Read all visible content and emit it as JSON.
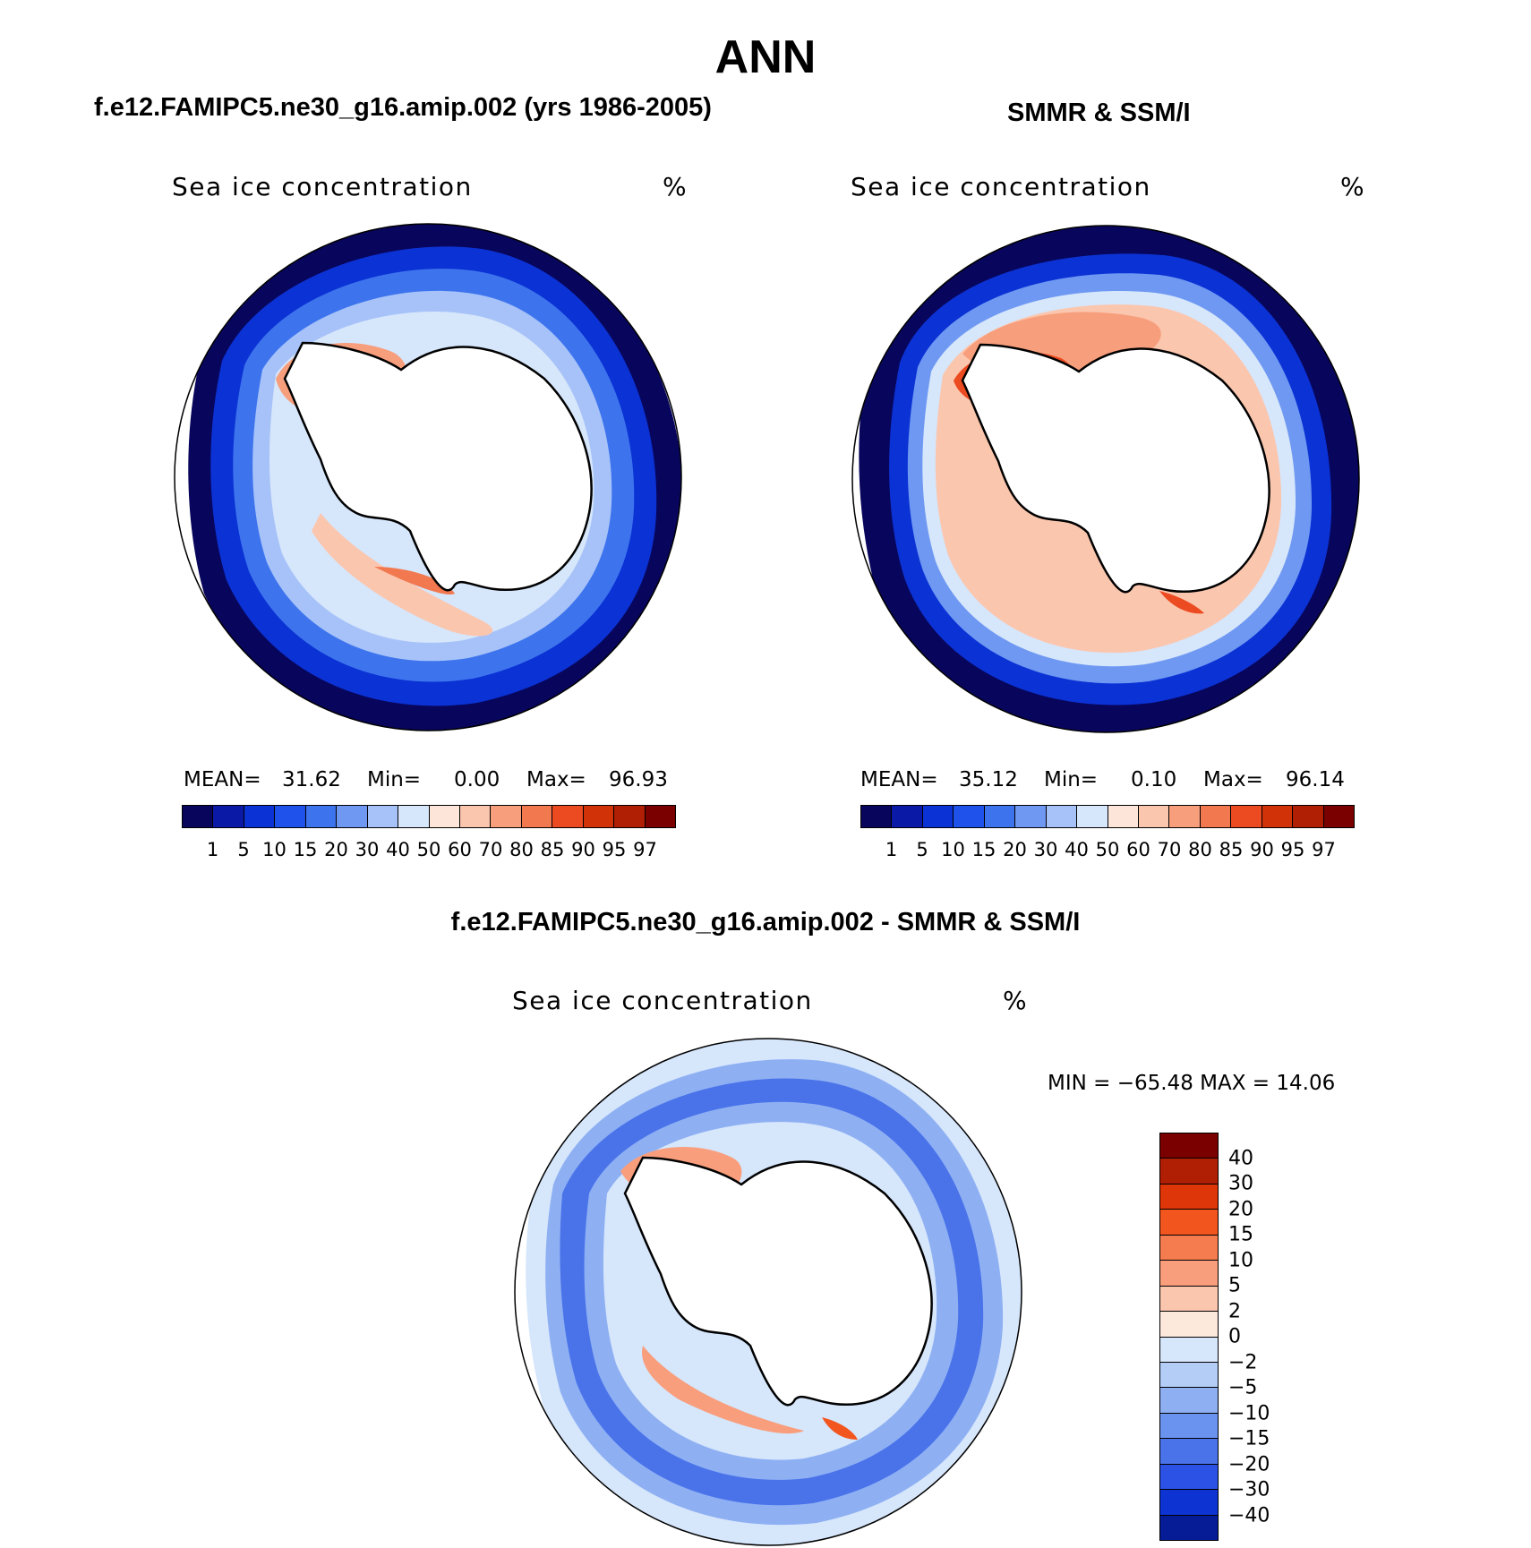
{
  "figure": {
    "title": "ANN",
    "field_label": "Sea ice concentration",
    "units": "%"
  },
  "panels": {
    "model": {
      "title": "f.e12.FAMIPC5.ne30_g16.amip.002 (yrs 1986-2005)",
      "mean_label": "MEAN=",
      "mean": "31.62",
      "min_label": "Min=",
      "min": "0.00",
      "max_label": "Max=",
      "max": "96.93"
    },
    "obs": {
      "title": "SMMR & SSM/I",
      "mean_label": "MEAN=",
      "mean": "35.12",
      "min_label": "Min=",
      "min": "0.10",
      "max_label": "Max=",
      "max": "96.14"
    },
    "diff": {
      "title": "f.e12.FAMIPC5.ne30_g16.amip.002 - SMMR & SSM/I",
      "minmax": "MIN = −65.48 MAX =   14.06"
    }
  },
  "colorbar_concentration": {
    "labels": [
      "1",
      "5",
      "10",
      "15",
      "20",
      "30",
      "40",
      "50",
      "60",
      "70",
      "80",
      "85",
      "90",
      "95",
      "97"
    ],
    "colors": [
      "#08065c",
      "#0a1aa6",
      "#0b32d4",
      "#1e52ea",
      "#3d74ee",
      "#6e98f2",
      "#a6c2f8",
      "#d6e6fb",
      "#fde6d9",
      "#fbc6ae",
      "#f79e7c",
      "#f2784f",
      "#ec4a20",
      "#d23208",
      "#b01e04",
      "#7a0000"
    ]
  },
  "colorbar_difference": {
    "labels": [
      "40",
      "30",
      "20",
      "15",
      "10",
      "5",
      "2",
      "0",
      "−2",
      "−5",
      "−10",
      "−15",
      "−20",
      "−30",
      "−40"
    ],
    "colors": [
      "#7a0000",
      "#b01e04",
      "#de3608",
      "#f2561e",
      "#f57c4e",
      "#f89e7c",
      "#fbc6ae",
      "#fde9dc",
      "#d6e6fb",
      "#b3cdf7",
      "#8eb0f3",
      "#6a93ef",
      "#4a73ea",
      "#2b52e4",
      "#0d34d2",
      "#061c96"
    ]
  },
  "map": {
    "projection": "south polar stereographic",
    "region": "Antarctica"
  }
}
